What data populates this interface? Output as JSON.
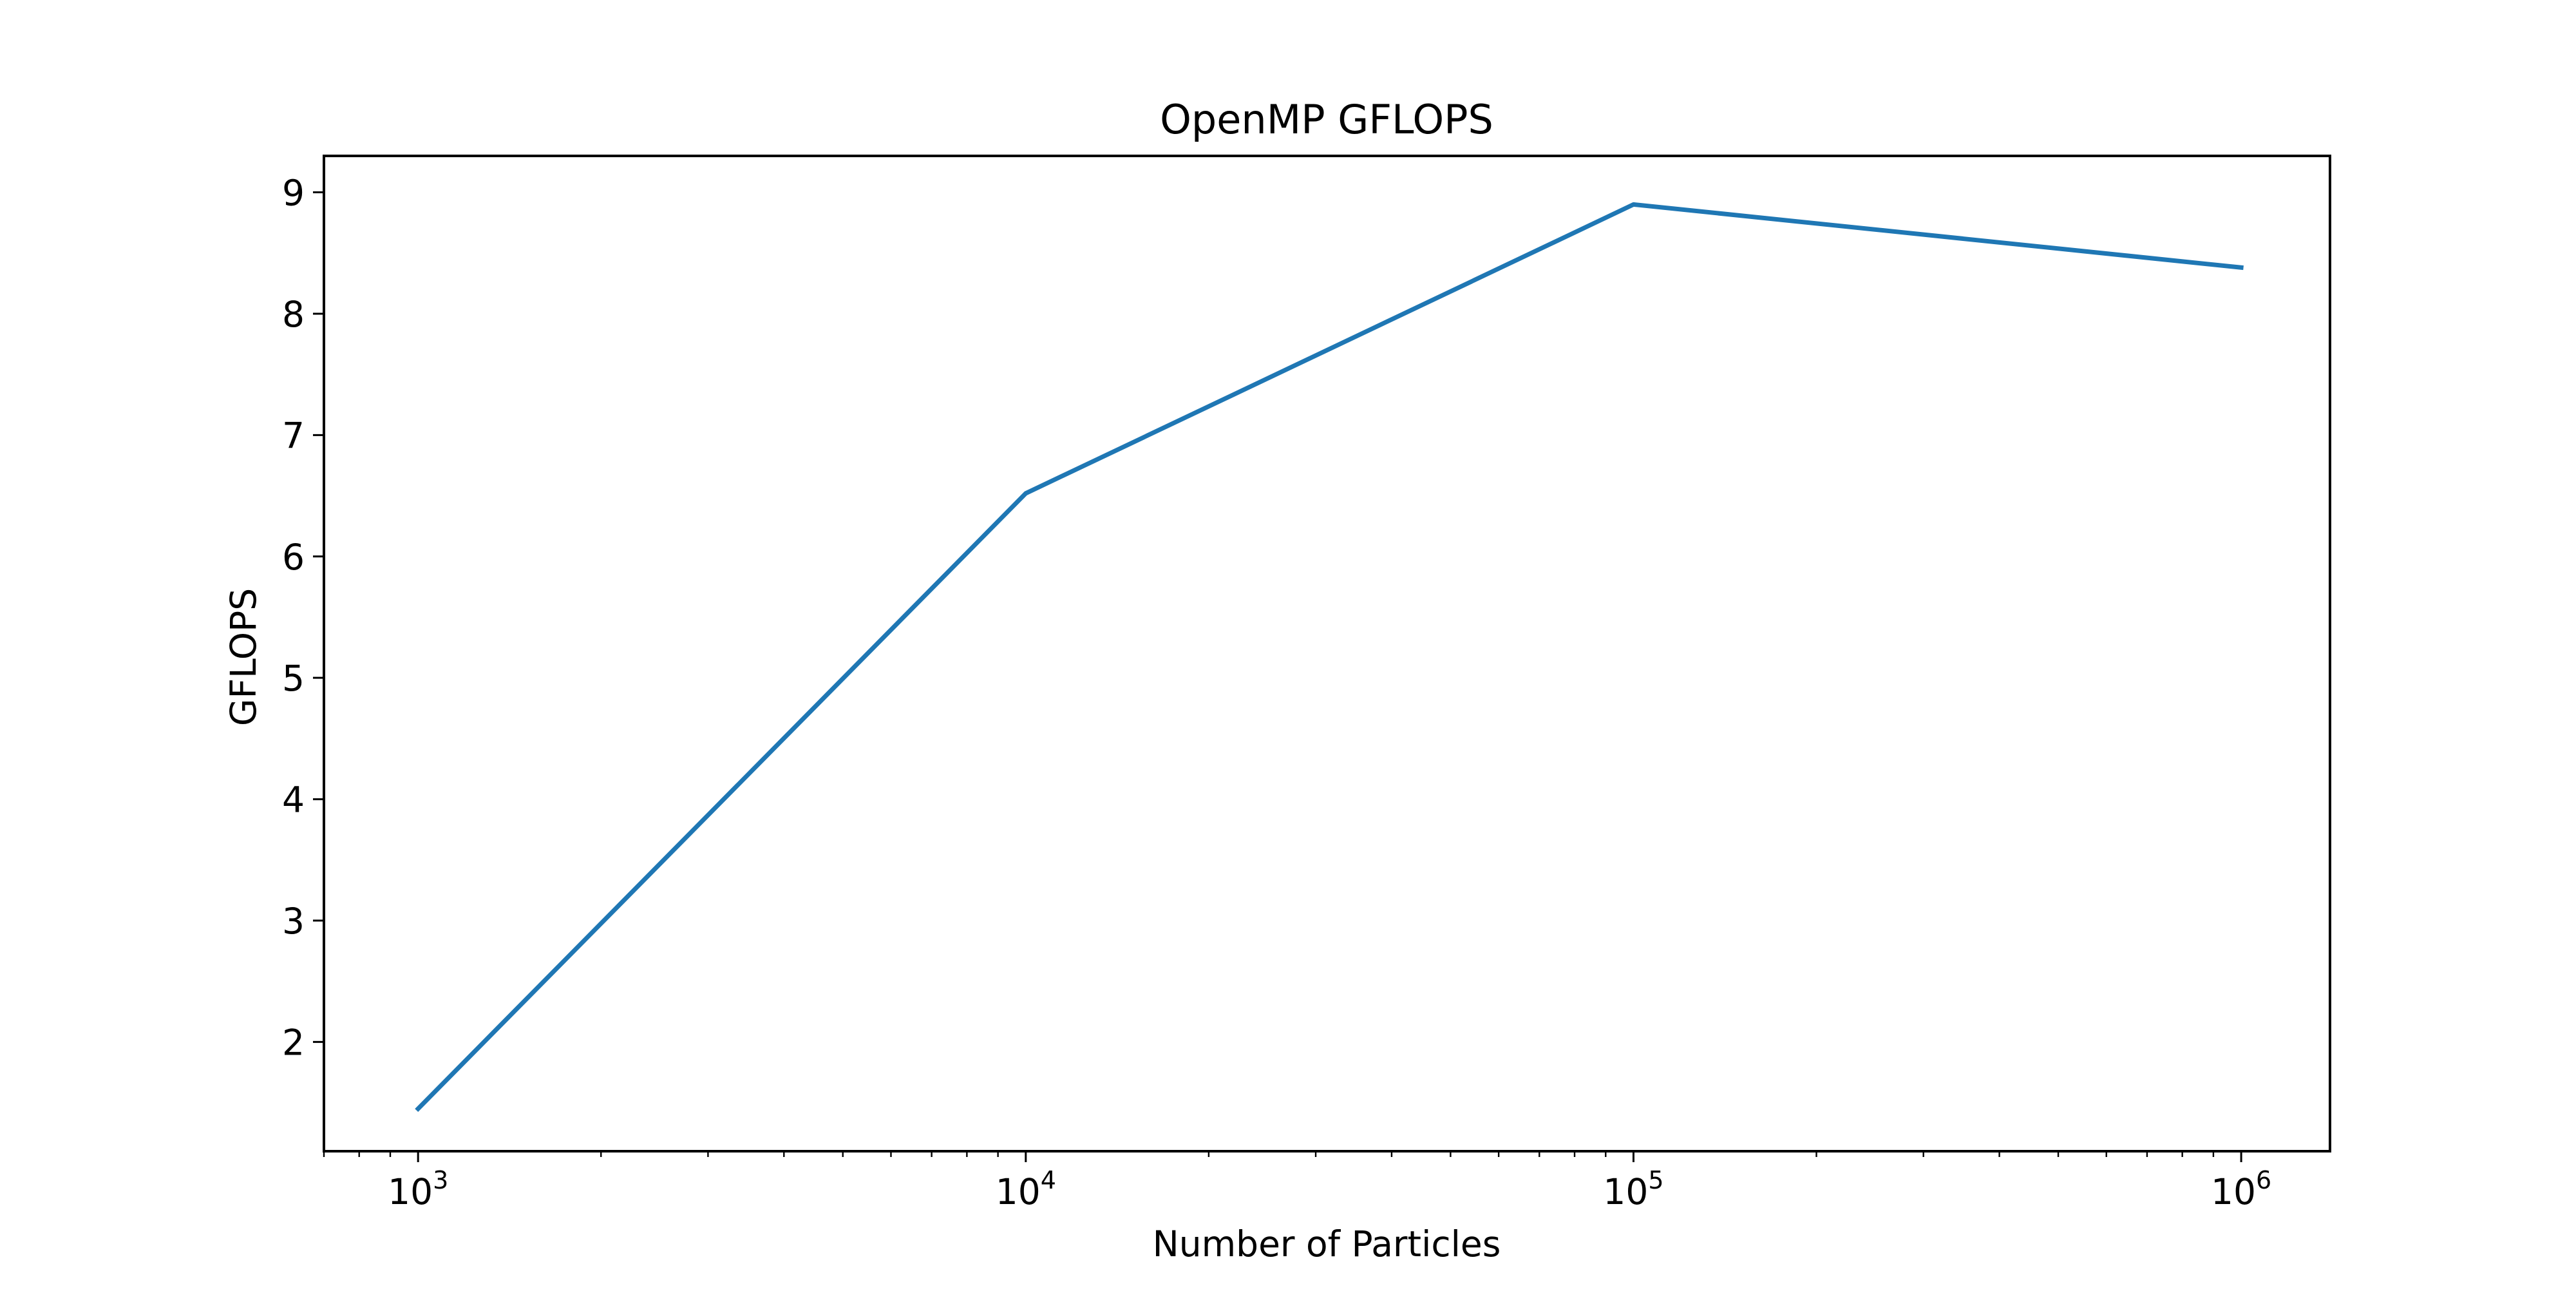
{
  "chart_data": {
    "type": "line",
    "title": "OpenMP GFLOPS",
    "xlabel": "Number of Particles",
    "ylabel": "GFLOPS",
    "x_scale": "log",
    "xlim": [
      700,
      1400000
    ],
    "ylim": [
      1.1,
      9.3
    ],
    "x_ticks": [
      {
        "value": 1000,
        "base": "10",
        "exp": "3"
      },
      {
        "value": 10000,
        "base": "10",
        "exp": "4"
      },
      {
        "value": 100000,
        "base": "10",
        "exp": "5"
      },
      {
        "value": 1000000,
        "base": "10",
        "exp": "6"
      }
    ],
    "y_ticks": [
      2,
      3,
      4,
      5,
      6,
      7,
      8,
      9
    ],
    "grid": false,
    "legend": "none",
    "series": [
      {
        "x": [
          1000,
          10000,
          100000,
          1000000
        ],
        "values": [
          1.45,
          6.52,
          8.9,
          8.38
        ],
        "color": "#1f77b4"
      }
    ]
  }
}
